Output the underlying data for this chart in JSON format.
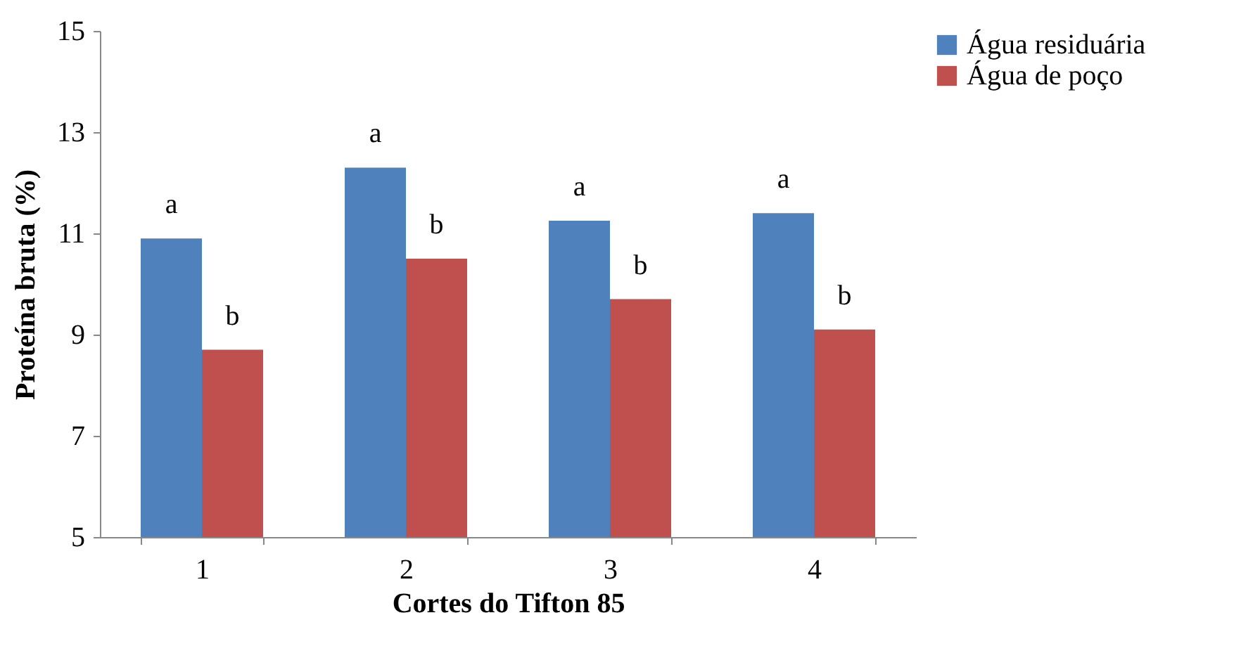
{
  "chart_data": {
    "type": "bar",
    "xlabel": "Cortes do Tifton 85",
    "ylabel": "Proteína bruta (%)",
    "categories": [
      "1",
      "2",
      "3",
      "4"
    ],
    "series": [
      {
        "name": "Água residuária",
        "color": "#4f81bd",
        "values": [
          10.9,
          12.3,
          11.25,
          11.4
        ]
      },
      {
        "name": "Água de poço",
        "color": "#c0504d",
        "values": [
          8.7,
          10.5,
          9.7,
          9.1
        ]
      }
    ],
    "ylim": [
      5,
      15
    ],
    "yticks": [
      5,
      7,
      9,
      11,
      13,
      15
    ],
    "grid": false,
    "legend": "right",
    "annotations": [
      {
        "text": "a",
        "x": "1",
        "y": 10.9
      },
      {
        "text": "b",
        "x": "1",
        "y": 8.7
      },
      {
        "text": "a",
        "x": "2",
        "y": 12.3
      },
      {
        "text": "b",
        "x": "2",
        "y": 10.5
      },
      {
        "text": "a",
        "x": "3",
        "y": 11.25
      },
      {
        "text": "b",
        "x": "3",
        "y": 9.7
      },
      {
        "text": "a",
        "x": "4",
        "y": 11.4
      },
      {
        "text": "b",
        "x": "4",
        "y": 9.1
      }
    ]
  }
}
